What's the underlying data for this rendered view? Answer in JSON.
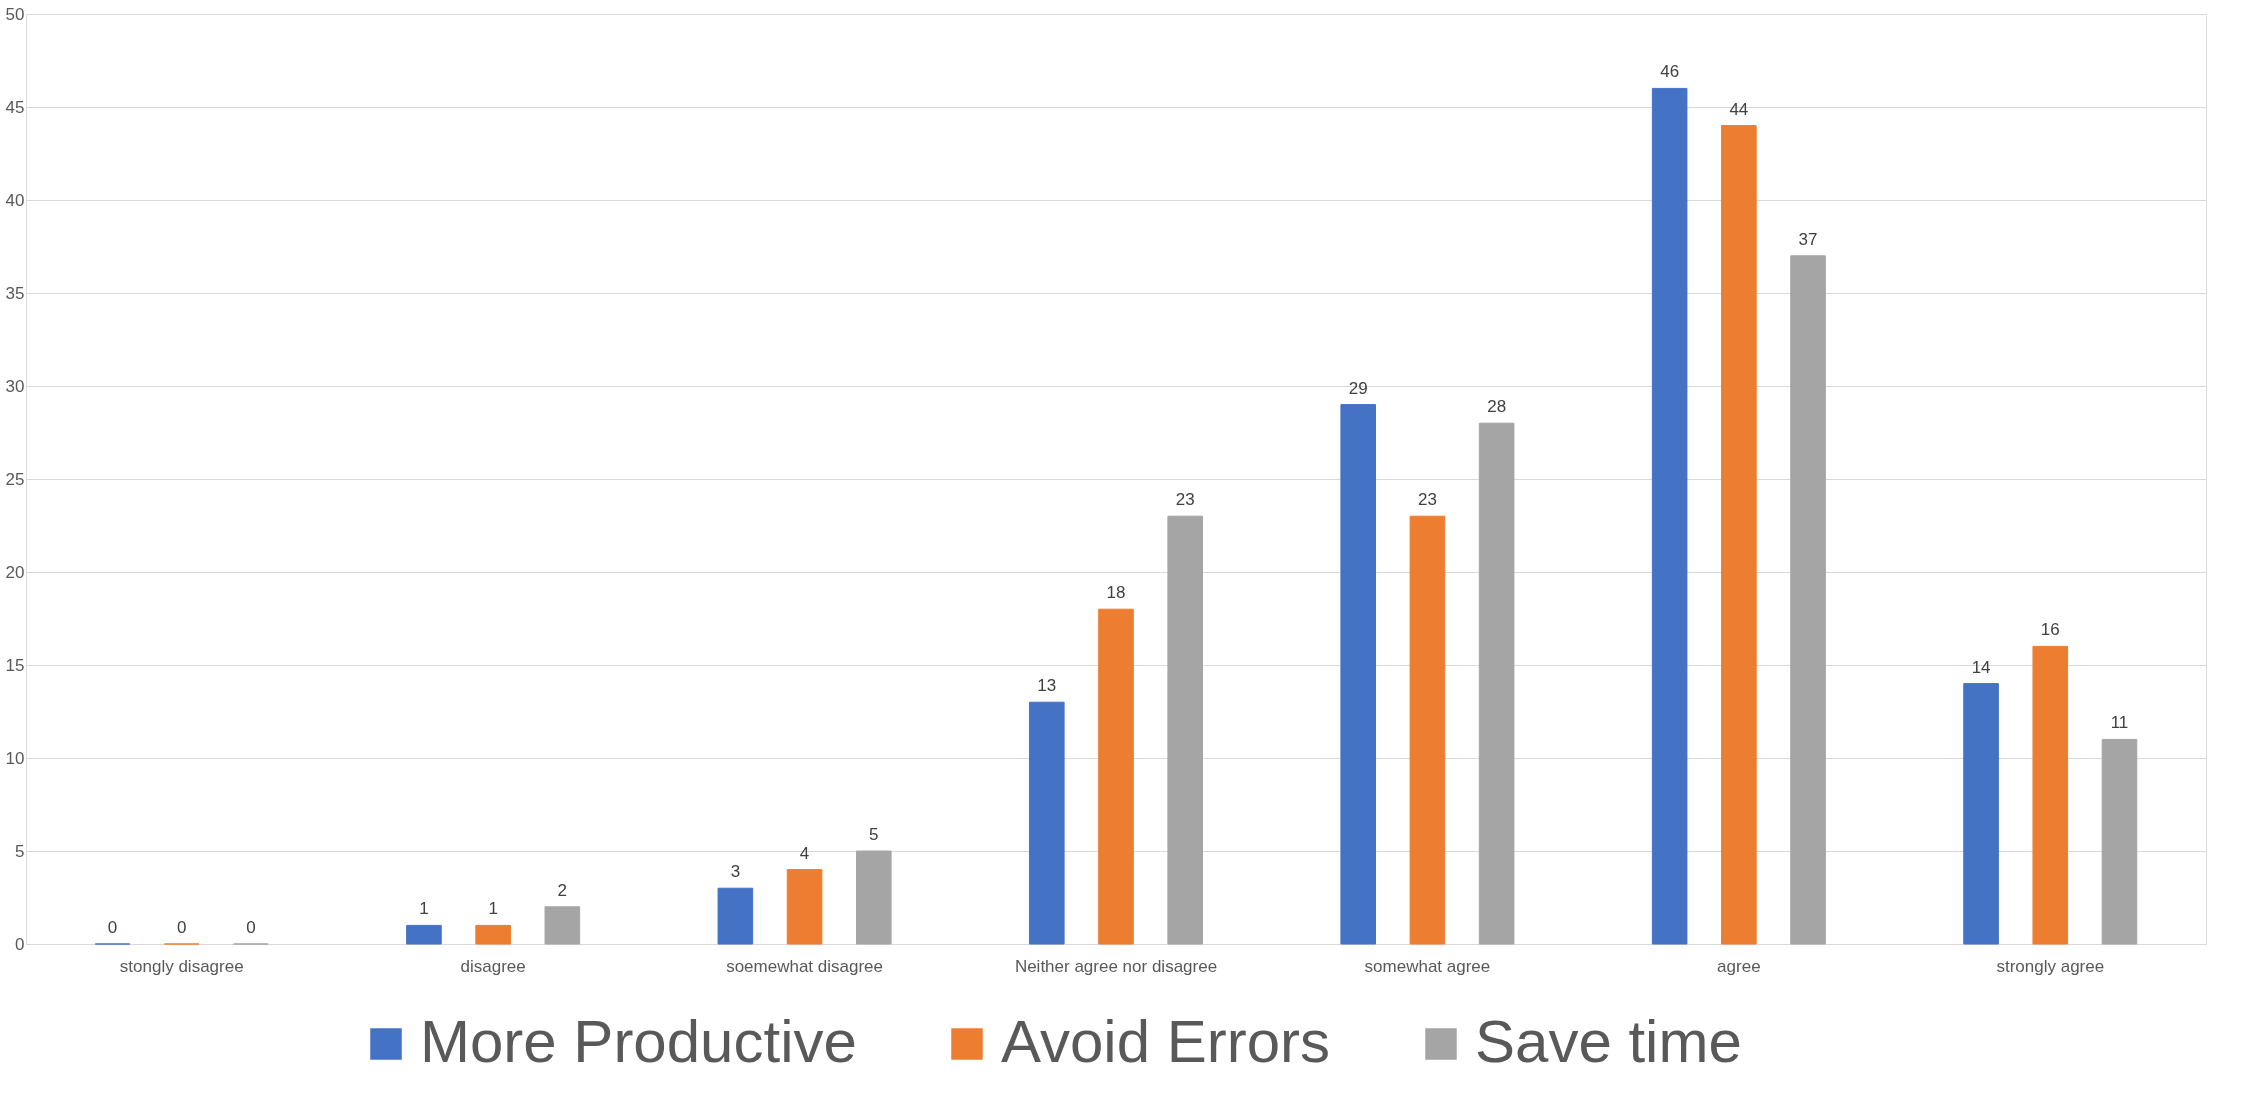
{
  "chart_data": {
    "type": "bar",
    "categories": [
      "stongly disagree",
      "disagree",
      "soemewhat disagree",
      "Neither agree nor disagree",
      "somewhat agree",
      "agree",
      "strongly agree"
    ],
    "series": [
      {
        "name": "More Productive",
        "color": "#4472c4",
        "values": [
          0,
          1,
          3,
          13,
          29,
          46,
          14
        ]
      },
      {
        "name": "Avoid Errors",
        "color": "#ed7d31",
        "values": [
          0,
          1,
          4,
          18,
          23,
          44,
          16
        ]
      },
      {
        "name": "Save time",
        "color": "#a5a5a5",
        "values": [
          0,
          2,
          5,
          23,
          28,
          37,
          11
        ]
      }
    ],
    "ylim": [
      0,
      50
    ],
    "yticks": [
      0,
      5,
      10,
      15,
      20,
      25,
      30,
      35,
      40,
      45,
      50
    ],
    "grid": "y",
    "legend": "bottom",
    "data_labels": true
  }
}
